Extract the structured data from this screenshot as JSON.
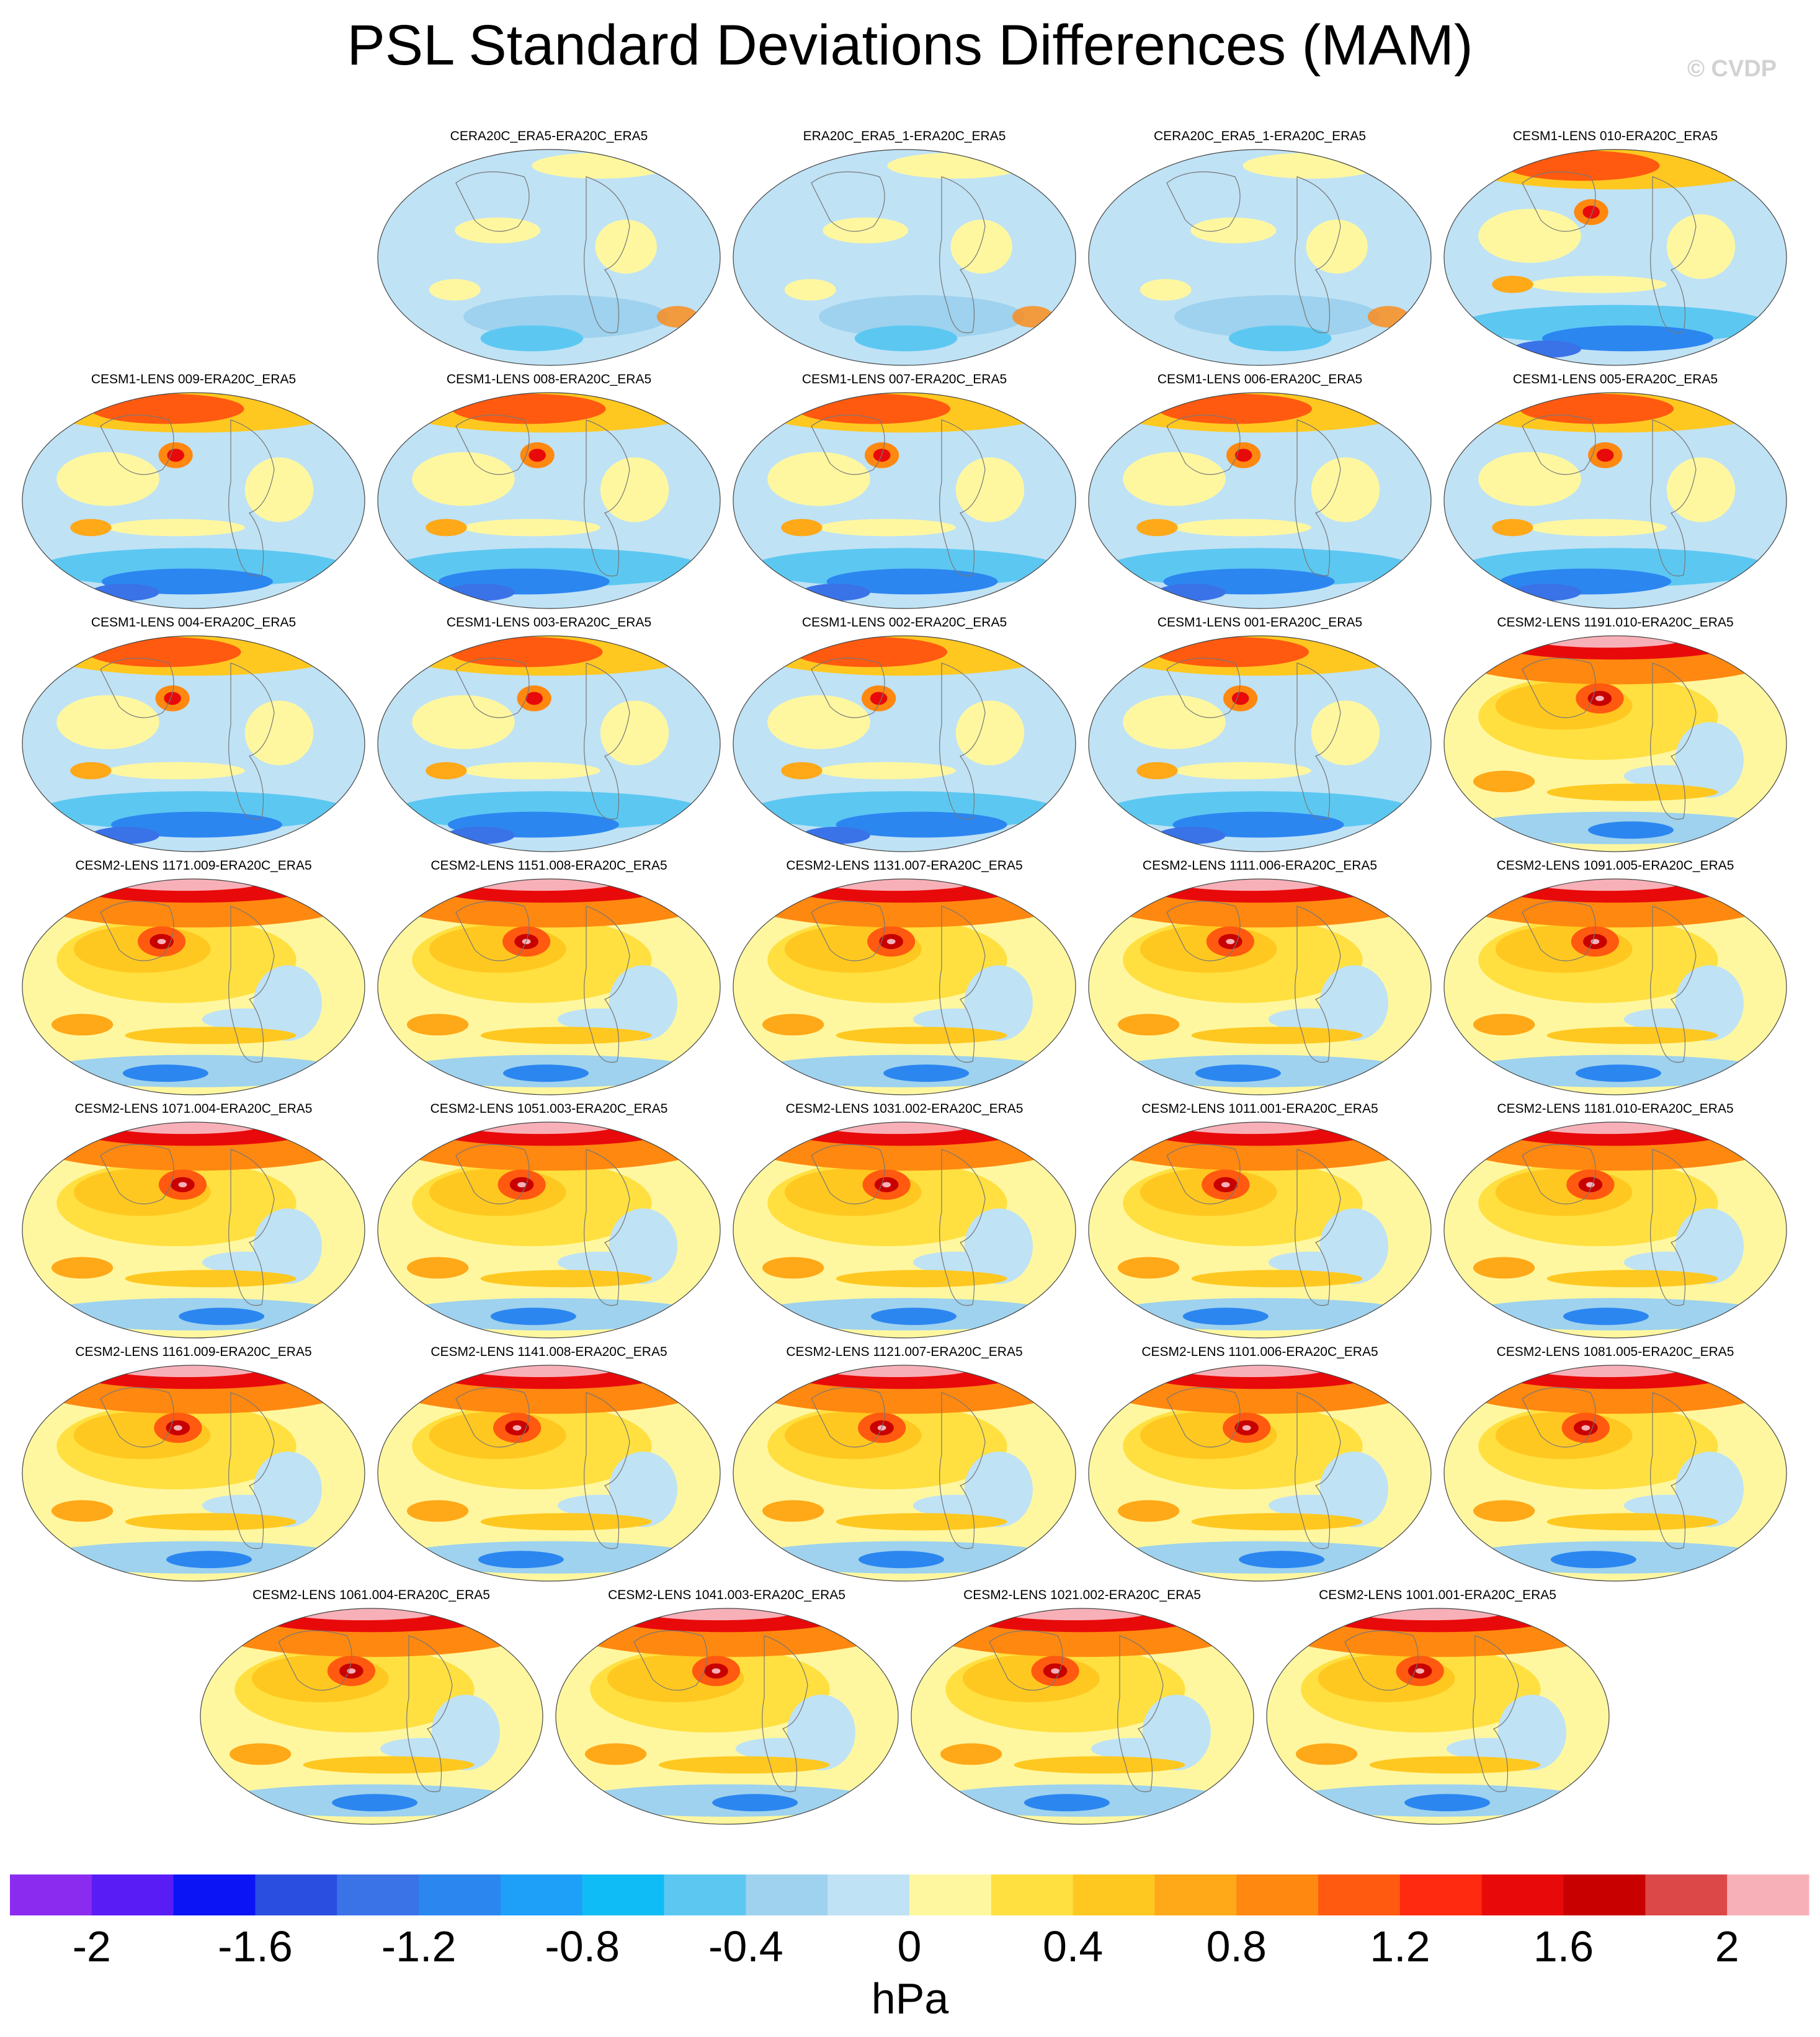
{
  "title": "PSL Standard Deviations Differences (MAM)",
  "credit": "© CVDP",
  "panels": [
    {
      "label": "CERA20C_ERA5-ERA20C_ERA5",
      "row": 0,
      "col": 1,
      "style": "cool"
    },
    {
      "label": "ERA20C_ERA5_1-ERA20C_ERA5",
      "row": 0,
      "col": 2,
      "style": "cool"
    },
    {
      "label": "CERA20C_ERA5_1-ERA20C_ERA5",
      "row": 0,
      "col": 3,
      "style": "cool"
    },
    {
      "label": "CESM1-LENS 010-ERA20C_ERA5",
      "row": 0,
      "col": 4,
      "style": "cesm1"
    },
    {
      "label": "CESM1-LENS 009-ERA20C_ERA5",
      "row": 1,
      "col": 0,
      "style": "cesm1"
    },
    {
      "label": "CESM1-LENS 008-ERA20C_ERA5",
      "row": 1,
      "col": 1,
      "style": "cesm1"
    },
    {
      "label": "CESM1-LENS 007-ERA20C_ERA5",
      "row": 1,
      "col": 2,
      "style": "cesm1"
    },
    {
      "label": "CESM1-LENS 006-ERA20C_ERA5",
      "row": 1,
      "col": 3,
      "style": "cesm1"
    },
    {
      "label": "CESM1-LENS 005-ERA20C_ERA5",
      "row": 1,
      "col": 4,
      "style": "cesm1"
    },
    {
      "label": "CESM1-LENS 004-ERA20C_ERA5",
      "row": 2,
      "col": 0,
      "style": "cesm1"
    },
    {
      "label": "CESM1-LENS 003-ERA20C_ERA5",
      "row": 2,
      "col": 1,
      "style": "cesm1"
    },
    {
      "label": "CESM1-LENS 002-ERA20C_ERA5",
      "row": 2,
      "col": 2,
      "style": "cesm1"
    },
    {
      "label": "CESM1-LENS 001-ERA20C_ERA5",
      "row": 2,
      "col": 3,
      "style": "cesm1"
    },
    {
      "label": "CESM2-LENS 1191.010-ERA20C_ERA5",
      "row": 2,
      "col": 4,
      "style": "cesm2"
    },
    {
      "label": "CESM2-LENS 1171.009-ERA20C_ERA5",
      "row": 3,
      "col": 0,
      "style": "cesm2"
    },
    {
      "label": "CESM2-LENS 1151.008-ERA20C_ERA5",
      "row": 3,
      "col": 1,
      "style": "cesm2"
    },
    {
      "label": "CESM2-LENS 1131.007-ERA20C_ERA5",
      "row": 3,
      "col": 2,
      "style": "cesm2"
    },
    {
      "label": "CESM2-LENS 1111.006-ERA20C_ERA5",
      "row": 3,
      "col": 3,
      "style": "cesm2"
    },
    {
      "label": "CESM2-LENS 1091.005-ERA20C_ERA5",
      "row": 3,
      "col": 4,
      "style": "cesm2"
    },
    {
      "label": "CESM2-LENS 1071.004-ERA20C_ERA5",
      "row": 4,
      "col": 0,
      "style": "cesm2"
    },
    {
      "label": "CESM2-LENS 1051.003-ERA20C_ERA5",
      "row": 4,
      "col": 1,
      "style": "cesm2"
    },
    {
      "label": "CESM2-LENS 1031.002-ERA20C_ERA5",
      "row": 4,
      "col": 2,
      "style": "cesm2"
    },
    {
      "label": "CESM2-LENS 1011.001-ERA20C_ERA5",
      "row": 4,
      "col": 3,
      "style": "cesm2"
    },
    {
      "label": "CESM2-LENS 1181.010-ERA20C_ERA5",
      "row": 4,
      "col": 4,
      "style": "cesm2"
    },
    {
      "label": "CESM2-LENS 1161.009-ERA20C_ERA5",
      "row": 5,
      "col": 0,
      "style": "cesm2"
    },
    {
      "label": "CESM2-LENS 1141.008-ERA20C_ERA5",
      "row": 5,
      "col": 1,
      "style": "cesm2"
    },
    {
      "label": "CESM2-LENS 1121.007-ERA20C_ERA5",
      "row": 5,
      "col": 2,
      "style": "cesm2"
    },
    {
      "label": "CESM2-LENS 1101.006-ERA20C_ERA5",
      "row": 5,
      "col": 3,
      "style": "cesm2"
    },
    {
      "label": "CESM2-LENS 1081.005-ERA20C_ERA5",
      "row": 5,
      "col": 4,
      "style": "cesm2"
    },
    {
      "label": "CESM2-LENS 1061.004-ERA20C_ERA5",
      "row": 6,
      "col": 0.5,
      "style": "cesm2"
    },
    {
      "label": "CESM2-LENS 1041.003-ERA20C_ERA5",
      "row": 6,
      "col": 1.5,
      "style": "cesm2"
    },
    {
      "label": "CESM2-LENS 1021.002-ERA20C_ERA5",
      "row": 6,
      "col": 2.5,
      "style": "cesm2"
    },
    {
      "label": "CESM2-LENS 1001.001-ERA20C_ERA5",
      "row": 6,
      "col": 3.5,
      "style": "cesm2"
    }
  ],
  "colorbar": {
    "units": "hPa",
    "colors": [
      "#8c2bf0",
      "#5a1cf5",
      "#0a14f5",
      "#2a4ee0",
      "#3a72e8",
      "#2c86f0",
      "#1ea0f8",
      "#10bcf5",
      "#5cc8f2",
      "#9ed2ee",
      "#bfe2f5",
      "#fff7a0",
      "#ffe040",
      "#ffc820",
      "#ffa818",
      "#ff8810",
      "#ff5a10",
      "#ff2a10",
      "#e80a0a",
      "#c80000",
      "#dc4848",
      "#f8b0b8"
    ],
    "tick_labels": [
      "-2",
      "-1.6",
      "-1.2",
      "-0.8",
      "-0.4",
      "0",
      "0.4",
      "0.8",
      "1.2",
      "1.6",
      "2"
    ]
  }
}
